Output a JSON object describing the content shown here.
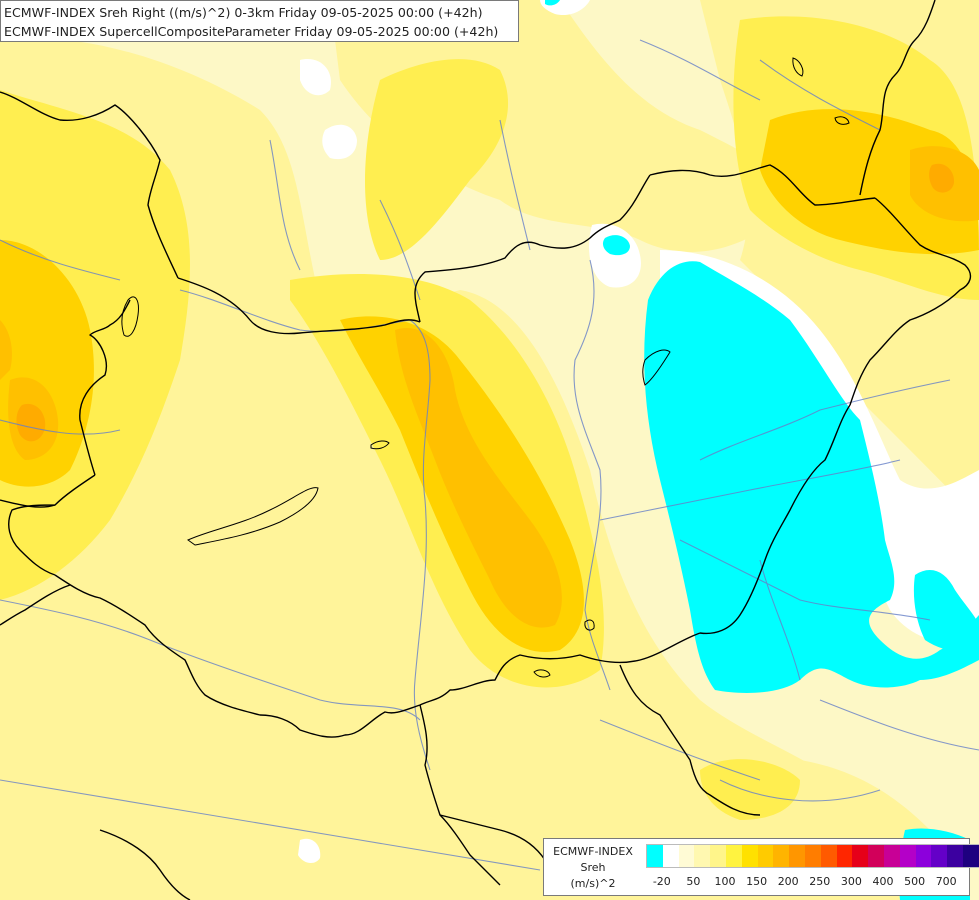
{
  "header": {
    "line1": "ECMWF-INDEX Sreh Right ((m/s)^2) 0-3km Friday 09-05-2025 00:00 (+42h)",
    "line2": "ECMWF-INDEX SupercellCompositeParameter Friday 09-05-2025 00:00 (+42h)"
  },
  "legend": {
    "source": "ECMWF-INDEX",
    "field": "Sreh",
    "unit": "(m/s)^2",
    "colors": [
      "#00ffff",
      "#ffffff",
      "#fffbd5",
      "#fff8b0",
      "#fff58a",
      "#fff340",
      "#ffe100",
      "#ffcb00",
      "#ffb400",
      "#ff9600",
      "#ff7d00",
      "#ff5a00",
      "#ff2600",
      "#e60019",
      "#d2005a",
      "#c80096",
      "#b400c8",
      "#8c00dc",
      "#6400c8",
      "#3c00a0",
      "#1e0080"
    ],
    "tick_labels": [
      "-20",
      "50",
      "100",
      "150",
      "200",
      "250",
      "300",
      "400",
      "500",
      "700"
    ]
  },
  "map": {
    "colors": {
      "background": "#fdf8c6",
      "pale": "#fffbd5",
      "light_yellow": "#fff49a",
      "yellow": "#ffee50",
      "gold": "#ffd200",
      "orange": "#ffc000",
      "dark_orange": "#ffab00",
      "cyan": "#00ffff",
      "white": "#ffffff",
      "border": "#000000",
      "river": "#6680c8"
    }
  }
}
